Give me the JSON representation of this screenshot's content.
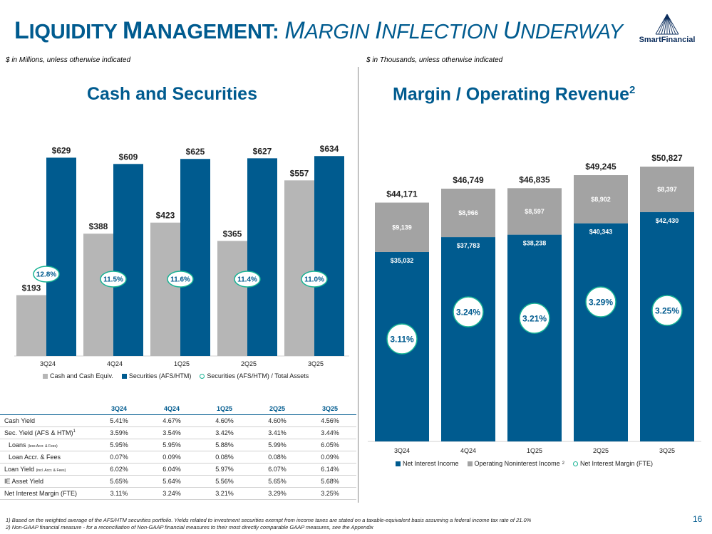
{
  "title": {
    "part1_cap": "L",
    "part1_rest": "IQUIDITY ",
    "part2_cap": "M",
    "part2_rest": "ANAGEMENT:",
    "part3_cap": "M",
    "part3_rest": "ARGIN ",
    "part4_cap": "I",
    "part4_rest": "NFLECTION ",
    "part5_cap": "U",
    "part5_rest": "NDERWAY"
  },
  "logo": {
    "text": "SmartFinancial"
  },
  "left": {
    "units_note": "$ in Millions, unless otherwise indicated",
    "section_title": "Cash and Securities"
  },
  "right": {
    "units_note": "$ in Thousands, unless otherwise indicated",
    "section_title": "Margin / Operating Revenue",
    "section_title_sup": "2"
  },
  "colors": {
    "navy": "#005b8f",
    "gray": "#b6b6b6",
    "darkgray": "#a3a3a3",
    "teal": "#18b394"
  },
  "chart_data": [
    {
      "type": "bar",
      "title": "Cash and Securities",
      "categories": [
        "3Q24",
        "4Q24",
        "1Q25",
        "2Q25",
        "3Q25"
      ],
      "series": [
        {
          "name": "Cash and Cash Equiv.",
          "values": [
            193,
            388,
            423,
            365,
            557
          ],
          "labels": [
            "$193",
            "$388",
            "$423",
            "$365",
            "$557"
          ]
        },
        {
          "name": "Securities (AFS/HTM)",
          "values": [
            629,
            609,
            625,
            627,
            634
          ],
          "labels": [
            "$629",
            "$609",
            "$625",
            "$627",
            "$634"
          ]
        },
        {
          "name": "Securities (AFS/HTM) / Total Assets",
          "values": [
            12.8,
            11.5,
            11.6,
            11.4,
            11.0
          ],
          "labels": [
            "12.8%",
            "11.5%",
            "11.6%",
            "11.4%",
            "11.0%"
          ]
        }
      ],
      "ylim": [
        0,
        700
      ]
    },
    {
      "type": "bar",
      "stacked": true,
      "title": "Margin / Operating Revenue",
      "categories": [
        "3Q24",
        "4Q24",
        "1Q25",
        "2Q25",
        "3Q25"
      ],
      "series": [
        {
          "name": "Net Interest Income",
          "values": [
            35032,
            37783,
            38238,
            40343,
            42430
          ],
          "labels": [
            "$35,032",
            "$37,783",
            "$38,238",
            "$40,343",
            "$42,430"
          ]
        },
        {
          "name": "Operating Noninterest Income",
          "name_sup": "2",
          "values": [
            9139,
            8966,
            8597,
            8902,
            8397
          ],
          "labels": [
            "$9,139",
            "$8,966",
            "$8,597",
            "$8,902",
            "$8,397"
          ]
        },
        {
          "name": "Net Interest Margin (FTE)",
          "values": [
            3.11,
            3.24,
            3.21,
            3.29,
            3.25
          ],
          "labels": [
            "3.11%",
            "3.24%",
            "3.21%",
            "3.29%",
            "3.25%"
          ]
        }
      ],
      "totals": [
        44171,
        46749,
        46835,
        49245,
        50827
      ],
      "total_labels": [
        "$44,171",
        "$46,749",
        "$46,835",
        "$49,245",
        "$50,827"
      ],
      "ylim": [
        0,
        52000
      ]
    }
  ],
  "table": {
    "columns": [
      "3Q24",
      "4Q24",
      "1Q25",
      "2Q25",
      "3Q25"
    ],
    "rows": [
      {
        "label": "Cash Yield",
        "values": [
          "5.41%",
          "4.67%",
          "4.60%",
          "4.60%",
          "4.56%"
        ]
      },
      {
        "label": "Sec. Yield (AFS & HTM)",
        "sup": "1",
        "values": [
          "3.59%",
          "3.54%",
          "3.42%",
          "3.41%",
          "3.44%"
        ]
      },
      {
        "label": "Loans",
        "small": "(less Accr. & Fees)",
        "indent": true,
        "values": [
          "5.95%",
          "5.95%",
          "5.88%",
          "5.99%",
          "6.05%"
        ]
      },
      {
        "label": "Loan Accr. & Fees",
        "indent": true,
        "values": [
          "0.07%",
          "0.09%",
          "0.08%",
          "0.08%",
          "0.09%"
        ]
      },
      {
        "label": "Loan Yield",
        "small": "(incl. Accr. & Fees)",
        "separator": true,
        "values": [
          "6.02%",
          "6.04%",
          "5.97%",
          "6.07%",
          "6.14%"
        ]
      },
      {
        "label": "IE Asset Yield",
        "values": [
          "5.65%",
          "5.64%",
          "5.56%",
          "5.65%",
          "5.68%"
        ]
      },
      {
        "label": "Net Interest Margin (FTE)",
        "values": [
          "3.11%",
          "3.24%",
          "3.21%",
          "3.29%",
          "3.25%"
        ]
      }
    ]
  },
  "footnotes": [
    "1)  Based on the weighted average of the AFS/HTM securities portfolio. Yields related to investment securities exempt from income taxes are stated on a taxable-equivalent basis assuming a federal income tax rate of 21.0%",
    "2)  Non-GAAP financial measure - for a reconciliation of Non-GAAP financial measures to their most directly comparable GAAP measures, see the Appendix"
  ],
  "page_number": "16"
}
